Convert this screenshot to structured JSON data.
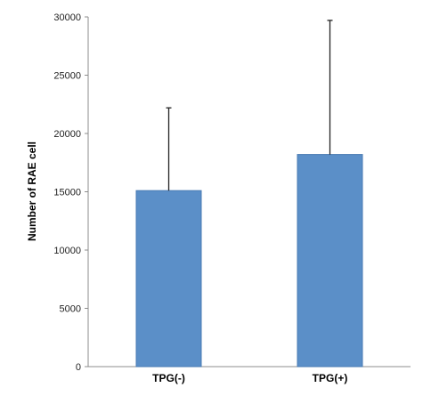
{
  "chart_data": {
    "type": "bar",
    "title": "",
    "xlabel": "",
    "ylabel": "Number of RAE cell",
    "categories": [
      "TPG(-)",
      "TPG(+)"
    ],
    "values": [
      15100,
      18200
    ],
    "error_upper": [
      22200,
      29700
    ],
    "ylim": [
      0,
      30000
    ],
    "yticks": [
      0,
      5000,
      10000,
      15000,
      20000,
      25000,
      30000
    ],
    "grid": false,
    "legend": "none",
    "colors": {
      "bar": "#5b8fc8",
      "bar_edge": "#4a7bb3",
      "axis": "#8c8c8c",
      "error_bar": "#222222"
    }
  }
}
